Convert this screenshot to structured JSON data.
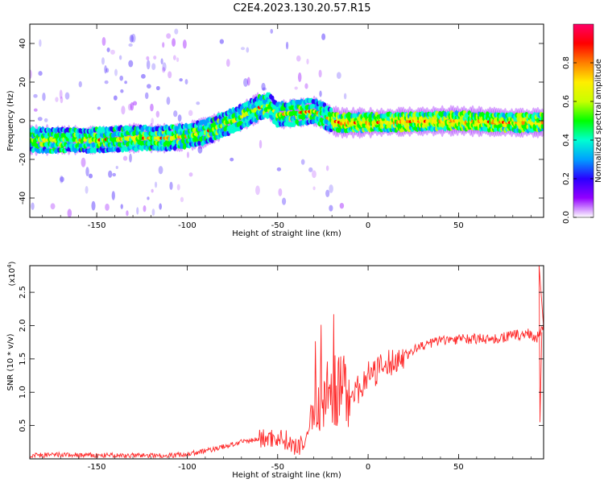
{
  "title": "C2E4.2023.130.20.57.R15",
  "colors": {
    "snr_line": "#ff2a2a",
    "dots_low": "#7f00ff",
    "dots_mid": "#00ffb0",
    "dots_high": "#ff0000",
    "axis": "#000000",
    "background": "#ffffff"
  },
  "chart_data": [
    {
      "type": "heatmap",
      "xlabel": "Height of straight line (km)",
      "ylabel": "Frequency (Hz)",
      "xlim": [
        -187,
        97
      ],
      "ylim": [
        -50,
        50
      ],
      "xticks": [
        -150,
        -100,
        -50,
        0,
        50
      ],
      "yticks": [
        -40,
        -20,
        0,
        20,
        40
      ],
      "ridge": {
        "x": [
          -187,
          -170,
          -150,
          -130,
          -110,
          -100,
          -90,
          -80,
          -70,
          -60,
          -55,
          -50,
          -40,
          -30,
          -25,
          -20,
          -15,
          -10,
          0,
          20,
          50,
          80,
          97
        ],
        "y": [
          -10,
          -10,
          -10,
          -9,
          -9,
          -8,
          -6,
          -2,
          2,
          7,
          8,
          3,
          4,
          5,
          3,
          0,
          -1,
          -1,
          -1,
          -0.5,
          0,
          -1,
          -1
        ]
      },
      "colorbar": {
        "label": "Normalized spectral amplitude",
        "ticks": [
          "0.0",
          "0.2",
          "0.4",
          "0.6",
          "0.8"
        ],
        "range": [
          0,
          1
        ],
        "colormap": [
          "#ffffff",
          "#9300ff",
          "#2a00ff",
          "#00a0ff",
          "#00ffd0",
          "#00ff00",
          "#c8ff00",
          "#ffee00",
          "#ff7f00",
          "#ff0000",
          "#ff0066"
        ]
      }
    },
    {
      "type": "line",
      "xlabel": "Height of straight line (km)",
      "ylabel": "SNR (10 * v/v)",
      "yscale_label": "(x10",
      "yscale_exp": "4",
      "xlim": [
        -187,
        97
      ],
      "ylim": [
        0,
        2.9
      ],
      "xticks": [
        -150,
        -100,
        -50,
        0,
        50
      ],
      "yticks": [
        "0.5",
        "1.0",
        "1.5",
        "2.0",
        "2.5"
      ],
      "series": [
        {
          "x": [
            -187,
            -170,
            -150,
            -130,
            -110,
            -100,
            -90,
            -80,
            -70,
            -60,
            -50,
            -45,
            -40,
            -35,
            -30,
            -25,
            -20,
            -15,
            -10,
            -5,
            0,
            10,
            20,
            30,
            40,
            50,
            60,
            70,
            80,
            90,
            93,
            95,
            97
          ],
          "y": [
            0.05,
            0.06,
            0.05,
            0.05,
            0.05,
            0.07,
            0.12,
            0.18,
            0.25,
            0.3,
            0.32,
            0.28,
            0.15,
            0.25,
            0.7,
            0.95,
            1.0,
            1.05,
            1.0,
            1.05,
            1.25,
            1.4,
            1.55,
            1.7,
            1.78,
            1.8,
            1.8,
            1.8,
            1.85,
            1.88,
            1.8,
            1.9,
            1.95
          ]
        }
      ]
    }
  ]
}
